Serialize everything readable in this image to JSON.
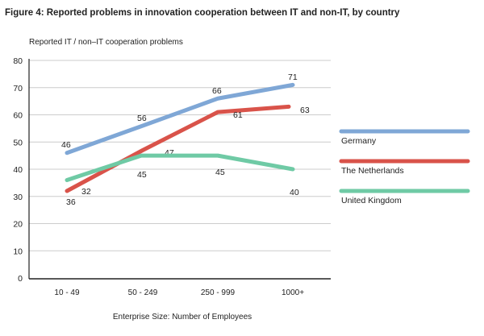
{
  "chart_data": {
    "type": "line",
    "title": "Figure 4: Reported problems in innovation cooperation between IT and non-IT, by country",
    "ylabel": "Reported IT / non–IT cooperation problems",
    "xlabel": "Enterprise Size: Number of Employees",
    "categories": [
      "10 - 49",
      "50 - 249",
      "250 - 999",
      "1000+"
    ],
    "ylim": [
      0,
      80
    ],
    "yticks": [
      0,
      10,
      20,
      30,
      40,
      50,
      60,
      70,
      80
    ],
    "grid": true,
    "legend_position": "right",
    "series": [
      {
        "name": "Germany",
        "color": "#7fa7d6",
        "values": [
          46,
          56,
          66,
          71
        ]
      },
      {
        "name": "The Netherlands",
        "color": "#d9534a",
        "values": [
          32,
          47,
          61,
          63
        ]
      },
      {
        "name": "United Kingdom",
        "color": "#6fcaa5",
        "values": [
          36,
          45,
          45,
          40
        ]
      }
    ]
  }
}
